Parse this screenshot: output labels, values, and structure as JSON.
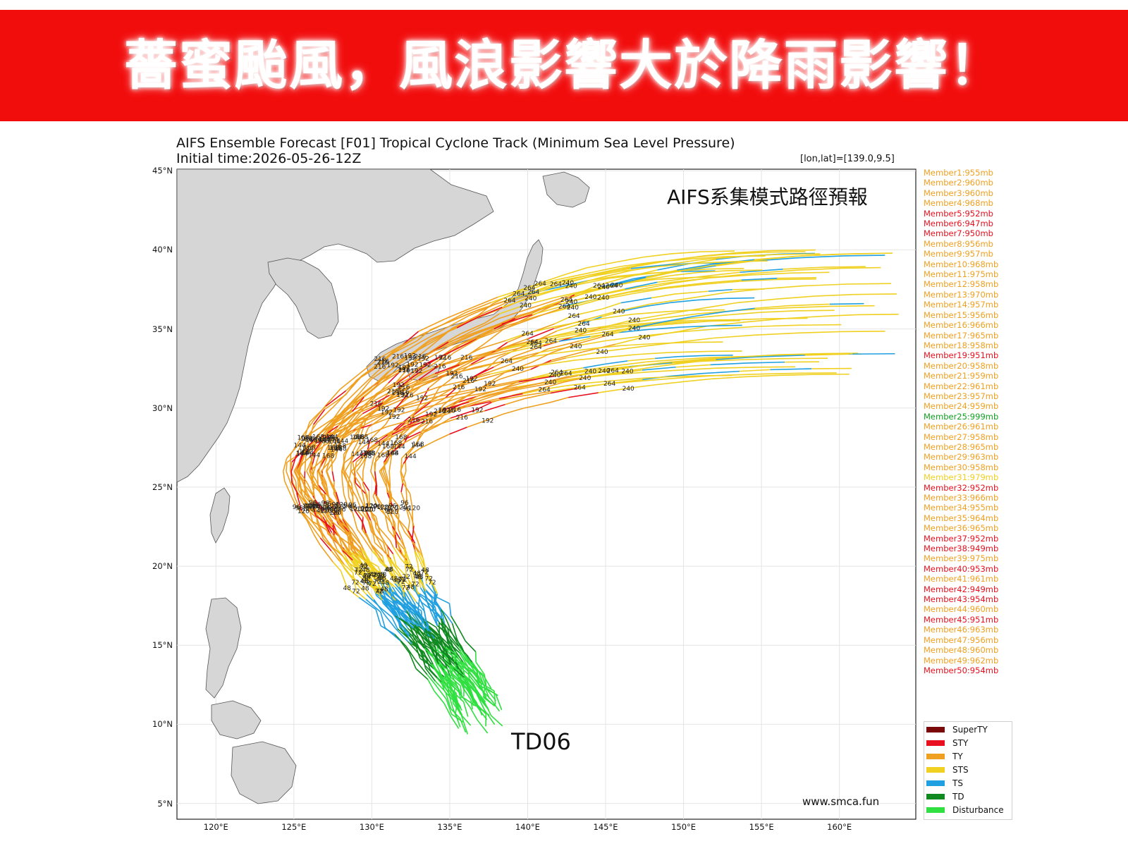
{
  "banner": {
    "title": "薔蜜颱風，風浪影響大於降雨影響！"
  },
  "figure": {
    "title": "AIFS Ensemble Forecast [F01] Tropical Cyclone Track (Minimum Sea Level Pressure)",
    "subtitle": "Initial time:2026-05-26-12Z",
    "coord_note": "[lon,lat]=[139.0,9.5]",
    "map_note": "AIFS系集模式路徑預報",
    "storm_label": "TD06",
    "website": "www.smca.fun"
  },
  "axes": {
    "lat_labels": [
      "45°N",
      "40°N",
      "35°N",
      "30°N",
      "25°N",
      "20°N",
      "15°N",
      "10°N",
      "5°N"
    ],
    "lon_labels": [
      "120°E",
      "125°E",
      "130°E",
      "135°E",
      "140°E",
      "145°E",
      "150°E",
      "155°E",
      "160°E"
    ],
    "lat_values": [
      45,
      40,
      35,
      30,
      25,
      20,
      15,
      10,
      5
    ],
    "lon_values": [
      120,
      125,
      130,
      135,
      140,
      145,
      150,
      155,
      160
    ]
  },
  "members": [
    {
      "label": "Member1:955mb",
      "color": "#f0a020"
    },
    {
      "label": "Member2:960mb",
      "color": "#f0a020"
    },
    {
      "label": "Member3:960mb",
      "color": "#f0a020"
    },
    {
      "label": "Member4:968mb",
      "color": "#f0a020"
    },
    {
      "label": "Member5:952mb",
      "color": "#e8101e"
    },
    {
      "label": "Member6:947mb",
      "color": "#e8101e"
    },
    {
      "label": "Member7:950mb",
      "color": "#e8101e"
    },
    {
      "label": "Member8:956mb",
      "color": "#f0a020"
    },
    {
      "label": "Member9:957mb",
      "color": "#f0a020"
    },
    {
      "label": "Member10:968mb",
      "color": "#f0a020"
    },
    {
      "label": "Member11:975mb",
      "color": "#f0a020"
    },
    {
      "label": "Member12:958mb",
      "color": "#f0a020"
    },
    {
      "label": "Member13:970mb",
      "color": "#f0a020"
    },
    {
      "label": "Member14:957mb",
      "color": "#f0a020"
    },
    {
      "label": "Member15:956mb",
      "color": "#f0a020"
    },
    {
      "label": "Member16:966mb",
      "color": "#f0a020"
    },
    {
      "label": "Member17:965mb",
      "color": "#f0a020"
    },
    {
      "label": "Member18:958mb",
      "color": "#f0a020"
    },
    {
      "label": "Member19:951mb",
      "color": "#e8101e"
    },
    {
      "label": "Member20:958mb",
      "color": "#f0a020"
    },
    {
      "label": "Member21:959mb",
      "color": "#f0a020"
    },
    {
      "label": "Member22:961mb",
      "color": "#f0a020"
    },
    {
      "label": "Member23:957mb",
      "color": "#f0a020"
    },
    {
      "label": "Member24:959mb",
      "color": "#f0a020"
    },
    {
      "label": "Member25:999mb",
      "color": "#10a020"
    },
    {
      "label": "Member26:961mb",
      "color": "#f0a020"
    },
    {
      "label": "Member27:958mb",
      "color": "#f0a020"
    },
    {
      "label": "Member28:965mb",
      "color": "#f0a020"
    },
    {
      "label": "Member29:963mb",
      "color": "#f0a020"
    },
    {
      "label": "Member30:958mb",
      "color": "#f0a020"
    },
    {
      "label": "Member31:979mb",
      "color": "#f0d020"
    },
    {
      "label": "Member32:952mb",
      "color": "#e8101e"
    },
    {
      "label": "Member33:966mb",
      "color": "#f0a020"
    },
    {
      "label": "Member34:955mb",
      "color": "#f0a020"
    },
    {
      "label": "Member35:964mb",
      "color": "#f0a020"
    },
    {
      "label": "Member36:965mb",
      "color": "#f0a020"
    },
    {
      "label": "Member37:952mb",
      "color": "#e8101e"
    },
    {
      "label": "Member38:949mb",
      "color": "#e8101e"
    },
    {
      "label": "Member39:975mb",
      "color": "#f0a020"
    },
    {
      "label": "Member40:953mb",
      "color": "#e8101e"
    },
    {
      "label": "Member41:961mb",
      "color": "#f0a020"
    },
    {
      "label": "Member42:949mb",
      "color": "#e8101e"
    },
    {
      "label": "Member43:954mb",
      "color": "#e8101e"
    },
    {
      "label": "Member44:960mb",
      "color": "#f0a020"
    },
    {
      "label": "Member45:951mb",
      "color": "#e8101e"
    },
    {
      "label": "Member46:963mb",
      "color": "#f0a020"
    },
    {
      "label": "Member47:956mb",
      "color": "#f0a020"
    },
    {
      "label": "Member48:960mb",
      "color": "#f0a020"
    },
    {
      "label": "Member49:962mb",
      "color": "#f0a020"
    },
    {
      "label": "Member50:954mb",
      "color": "#e8101e"
    }
  ],
  "categories": [
    {
      "label": "SuperTY",
      "color": "#7a0a0a"
    },
    {
      "label": "STY",
      "color": "#e8101e"
    },
    {
      "label": "TY",
      "color": "#f0a020"
    },
    {
      "label": "STS",
      "color": "#f0d020"
    },
    {
      "label": "TS",
      "color": "#20a0e0"
    },
    {
      "label": "TD",
      "color": "#108a20"
    },
    {
      "label": "Disturbance",
      "color": "#30e040"
    }
  ],
  "hour_labels": [
    "24",
    "48",
    "72",
    "96",
    "120",
    "144",
    "168",
    "192",
    "216",
    "240",
    "264"
  ]
}
